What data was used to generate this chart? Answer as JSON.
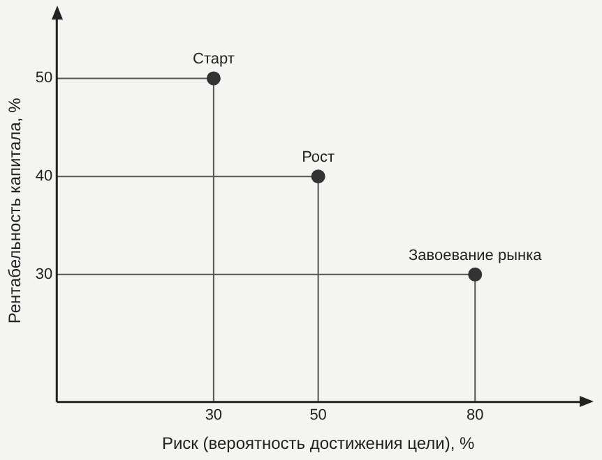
{
  "chart_data": {
    "type": "scatter",
    "xlabel": "Риск (вероятность достижения цели), %",
    "ylabel": "Рентабельность капитала, %",
    "x": [
      30,
      50,
      80
    ],
    "values": [
      50,
      40,
      30
    ],
    "color": "#333333",
    "xlim": [
      0,
      100
    ],
    "xticks": [
      30,
      50,
      80
    ],
    "ylim": [
      17,
      56
    ],
    "yticks": [
      30,
      40,
      50
    ],
    "grid": false,
    "legend": false,
    "marker": "circle",
    "ref_lines": [
      {
        "axis": "y",
        "value": 50,
        "color": "#555555"
      },
      {
        "axis": "y",
        "value": 40,
        "color": "#555555"
      },
      {
        "axis": "y",
        "value": 30,
        "color": "#555555"
      },
      {
        "axis": "x",
        "value": 30,
        "color": "#555555"
      },
      {
        "axis": "x",
        "value": 50,
        "color": "#555555"
      },
      {
        "axis": "x",
        "value": 80,
        "color": "#555555"
      }
    ],
    "annotations": [
      {
        "text": "Старт",
        "x": 30,
        "y": 50
      },
      {
        "text": "Рост",
        "x": 50,
        "y": 40
      },
      {
        "text": "Завоевание рынка",
        "x": 80,
        "y": 30
      }
    ]
  }
}
